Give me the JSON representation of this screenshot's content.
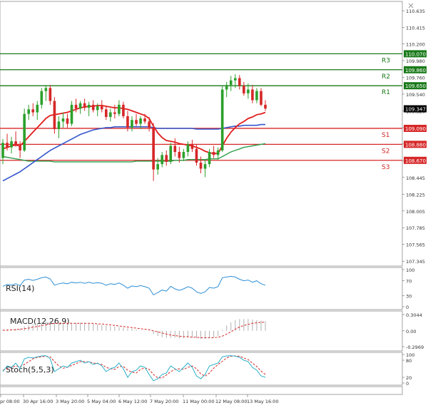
{
  "close_icon": "close-icon",
  "colors": {
    "bull": "#2ca02c",
    "bear": "#d62728",
    "ema_fast": "#e11d1d",
    "ema_slow": "#3355cc",
    "ema_long": "#2e9e4a",
    "resistance": "#1a7a1a",
    "support": "#d62728",
    "rsi": "#2e8fd6",
    "macd_hist": "#b0b0b0",
    "macd_signal": "#d62728",
    "stoch_k": "#2ab0c8",
    "stoch_d": "#d62728"
  },
  "price_panel": {
    "ylim": [
      107.3,
      110.72
    ],
    "tick_labels": [
      "110.635",
      "110.415",
      "110.200",
      "109.980",
      "109.760",
      "109.540",
      "109.320",
      "109.100",
      "108.885",
      "108.665",
      "108.445",
      "108.225",
      "108.005",
      "107.785",
      "107.565",
      "107.345"
    ],
    "tick_values": [
      110.635,
      110.415,
      110.2,
      109.98,
      109.76,
      109.54,
      109.32,
      109.1,
      108.885,
      108.665,
      108.445,
      108.225,
      108.005,
      107.785,
      107.565,
      107.345
    ],
    "current_price": "109.347",
    "current_value": 109.347
  },
  "levels": [
    {
      "name": "R3",
      "label": "110.070",
      "value": 110.07,
      "kind": "resistance"
    },
    {
      "name": "R2",
      "label": "109.860",
      "value": 109.86,
      "kind": "resistance"
    },
    {
      "name": "R1",
      "label": "109.650",
      "value": 109.65,
      "kind": "resistance"
    },
    {
      "name": "S1",
      "label": "109.090",
      "value": 109.09,
      "kind": "support"
    },
    {
      "name": "S2",
      "label": "108.880",
      "value": 108.88,
      "kind": "support"
    },
    {
      "name": "S3",
      "label": "108.670",
      "value": 108.67,
      "kind": "support"
    }
  ],
  "x_labels": [
    "pr 08:00",
    "30 Apr 16:00",
    "3 May 20:00",
    "5 May 04:00",
    "6 May 12:00",
    "7 May 20:00",
    "11 May 00:00",
    "12 May 08:00",
    "13 May 16:00"
  ],
  "rsi_panel": {
    "label": "RSI(14)",
    "ticks": [
      "100",
      "70",
      "30",
      "0"
    ],
    "tick_values": [
      100,
      70,
      30,
      0
    ]
  },
  "macd_panel": {
    "label": "MACD(12,26,9)",
    "ticks": [
      "0.3044",
      "0.00",
      "-0.2969"
    ],
    "tick_values": [
      0.3044,
      0.0,
      -0.2969
    ]
  },
  "stoch_panel": {
    "label": "Stoch(5,5,3)",
    "ticks": [
      "100",
      "80",
      "20",
      "0"
    ],
    "tick_values": [
      100,
      80,
      20,
      0
    ]
  },
  "chart_data": {
    "type": "candlestick",
    "candles": [
      [
        108.7,
        108.95,
        108.62,
        108.9
      ],
      [
        108.9,
        109.02,
        108.8,
        108.84
      ],
      [
        108.84,
        108.98,
        108.76,
        108.92
      ],
      [
        108.92,
        109.05,
        108.85,
        108.86
      ],
      [
        108.86,
        108.92,
        108.7,
        108.8
      ],
      [
        108.8,
        109.35,
        108.78,
        109.28
      ],
      [
        109.28,
        109.4,
        109.2,
        109.34
      ],
      [
        109.34,
        109.42,
        109.25,
        109.3
      ],
      [
        109.3,
        109.45,
        109.2,
        109.4
      ],
      [
        109.4,
        109.62,
        109.35,
        109.58
      ],
      [
        109.58,
        109.66,
        109.45,
        109.62
      ],
      [
        109.62,
        109.66,
        109.4,
        109.45
      ],
      [
        109.45,
        109.5,
        109.02,
        109.08
      ],
      [
        109.08,
        109.25,
        108.96,
        109.18
      ],
      [
        109.18,
        109.3,
        109.1,
        109.22
      ],
      [
        109.22,
        109.28,
        109.1,
        109.15
      ],
      [
        109.15,
        109.45,
        109.12,
        109.4
      ],
      [
        109.4,
        109.48,
        109.3,
        109.35
      ],
      [
        109.35,
        109.45,
        109.28,
        109.42
      ],
      [
        109.42,
        109.48,
        109.32,
        109.36
      ],
      [
        109.36,
        109.44,
        109.25,
        109.4
      ],
      [
        109.4,
        109.46,
        109.3,
        109.33
      ],
      [
        109.33,
        109.42,
        109.25,
        109.38
      ],
      [
        109.38,
        109.46,
        109.3,
        109.34
      ],
      [
        109.34,
        109.38,
        109.2,
        109.24
      ],
      [
        109.24,
        109.35,
        109.18,
        109.3
      ],
      [
        109.3,
        109.4,
        109.22,
        109.28
      ],
      [
        109.28,
        109.46,
        109.25,
        109.4
      ],
      [
        109.4,
        109.44,
        109.22,
        109.25
      ],
      [
        109.25,
        109.32,
        109.05,
        109.1
      ],
      [
        109.1,
        109.25,
        109.05,
        109.2
      ],
      [
        109.2,
        109.28,
        109.12,
        109.15
      ],
      [
        109.15,
        109.25,
        109.08,
        109.22
      ],
      [
        109.22,
        109.28,
        109.15,
        109.18
      ],
      [
        109.18,
        109.24,
        109.05,
        109.1
      ],
      [
        109.1,
        109.16,
        108.4,
        108.55
      ],
      [
        108.55,
        108.7,
        108.48,
        108.62
      ],
      [
        108.62,
        108.78,
        108.58,
        108.74
      ],
      [
        108.74,
        108.8,
        108.6,
        108.65
      ],
      [
        108.65,
        108.9,
        108.62,
        108.86
      ],
      [
        108.86,
        108.96,
        108.72,
        108.78
      ],
      [
        108.78,
        108.85,
        108.64,
        108.7
      ],
      [
        108.7,
        108.82,
        108.66,
        108.78
      ],
      [
        108.78,
        108.92,
        108.72,
        108.88
      ],
      [
        108.88,
        108.94,
        108.78,
        108.82
      ],
      [
        108.82,
        108.88,
        108.6,
        108.64
      ],
      [
        108.64,
        108.72,
        108.5,
        108.56
      ],
      [
        108.56,
        108.68,
        108.45,
        108.62
      ],
      [
        108.62,
        108.82,
        108.58,
        108.78
      ],
      [
        108.78,
        108.86,
        108.7,
        108.74
      ],
      [
        108.74,
        108.84,
        108.68,
        108.8
      ],
      [
        108.8,
        109.65,
        108.78,
        109.6
      ],
      [
        109.6,
        109.7,
        109.5,
        109.66
      ],
      [
        109.66,
        109.78,
        109.58,
        109.72
      ],
      [
        109.72,
        109.8,
        109.62,
        109.75
      ],
      [
        109.75,
        109.79,
        109.6,
        109.65
      ],
      [
        109.65,
        109.7,
        109.52,
        109.55
      ],
      [
        109.55,
        109.68,
        109.48,
        109.6
      ],
      [
        109.6,
        109.66,
        109.42,
        109.46
      ],
      [
        109.46,
        109.62,
        109.42,
        109.58
      ],
      [
        109.58,
        109.62,
        109.38,
        109.4
      ],
      [
        109.4,
        109.46,
        109.32,
        109.35
      ]
    ],
    "ema_fast": [
      108.82,
      108.84,
      108.86,
      108.87,
      108.86,
      108.92,
      108.98,
      109.04,
      109.1,
      109.16,
      109.22,
      109.26,
      109.27,
      109.28,
      109.29,
      109.3,
      109.32,
      109.34,
      109.36,
      109.37,
      109.38,
      109.38,
      109.39,
      109.39,
      109.38,
      109.37,
      109.36,
      109.36,
      109.35,
      109.34,
      109.32,
      109.3,
      109.28,
      109.26,
      109.22,
      109.12,
      109.03,
      108.97,
      108.93,
      108.92,
      108.91,
      108.89,
      108.88,
      108.87,
      108.86,
      108.84,
      108.82,
      108.79,
      108.77,
      108.76,
      108.76,
      108.86,
      108.96,
      109.04,
      109.1,
      109.15,
      109.18,
      109.22,
      109.24,
      109.27,
      109.28,
      109.3
    ],
    "ema_slow": [
      108.4,
      108.43,
      108.46,
      108.49,
      108.52,
      108.56,
      108.6,
      108.64,
      108.68,
      108.72,
      108.76,
      108.8,
      108.83,
      108.86,
      108.89,
      108.92,
      108.95,
      108.98,
      109.01,
      109.03,
      109.05,
      109.07,
      109.08,
      109.09,
      109.1,
      109.1,
      109.11,
      109.11,
      109.11,
      109.11,
      109.11,
      109.11,
      109.11,
      109.11,
      109.11,
      109.1,
      109.09,
      109.09,
      109.09,
      109.09,
      109.09,
      109.09,
      109.09,
      109.09,
      109.09,
      109.08,
      109.08,
      109.08,
      109.08,
      109.08,
      109.08,
      109.09,
      109.1,
      109.11,
      109.12,
      109.12,
      109.13,
      109.13,
      109.13,
      109.13,
      109.14,
      109.14
    ],
    "ema_long": [
      108.72,
      108.71,
      108.7,
      108.69,
      108.68,
      108.67,
      108.66,
      108.66,
      108.66,
      108.66,
      108.66,
      108.66,
      108.65,
      108.65,
      108.65,
      108.65,
      108.65,
      108.65,
      108.65,
      108.65,
      108.65,
      108.65,
      108.65,
      108.65,
      108.65,
      108.65,
      108.65,
      108.65,
      108.65,
      108.65,
      108.65,
      108.66,
      108.66,
      108.66,
      108.66,
      108.66,
      108.66,
      108.66,
      108.66,
      108.66,
      108.67,
      108.67,
      108.67,
      108.68,
      108.68,
      108.68,
      108.68,
      108.68,
      108.69,
      108.69,
      108.69,
      108.72,
      108.75,
      108.78,
      108.8,
      108.82,
      108.84,
      108.85,
      108.86,
      108.87,
      108.88,
      108.89
    ],
    "rsi": [
      55,
      60,
      58,
      62,
      57,
      72,
      74,
      71,
      74,
      78,
      80,
      75,
      58,
      62,
      64,
      62,
      66,
      64,
      66,
      63,
      66,
      63,
      65,
      63,
      58,
      62,
      60,
      64,
      58,
      50,
      56,
      54,
      57,
      54,
      50,
      32,
      38,
      45,
      42,
      55,
      48,
      44,
      48,
      54,
      50,
      40,
      36,
      40,
      52,
      50,
      54,
      78,
      80,
      82,
      80,
      74,
      70,
      72,
      66,
      70,
      62,
      58
    ],
    "macd_hist": [
      0.02,
      0.03,
      0.03,
      0.04,
      0.04,
      0.08,
      0.1,
      0.12,
      0.14,
      0.16,
      0.17,
      0.18,
      0.16,
      0.15,
      0.14,
      0.14,
      0.15,
      0.15,
      0.15,
      0.15,
      0.14,
      0.13,
      0.12,
      0.11,
      0.1,
      0.09,
      0.08,
      0.07,
      0.06,
      0.05,
      0.04,
      0.02,
      0.01,
      0.0,
      -0.01,
      -0.06,
      -0.1,
      -0.12,
      -0.13,
      -0.13,
      -0.13,
      -0.14,
      -0.14,
      -0.13,
      -0.13,
      -0.14,
      -0.15,
      -0.15,
      -0.13,
      -0.12,
      -0.1,
      0.02,
      0.1,
      0.16,
      0.2,
      0.22,
      0.22,
      0.22,
      0.21,
      0.2,
      0.19,
      0.18
    ],
    "macd_signal": [
      0.01,
      0.01,
      0.02,
      0.02,
      0.03,
      0.04,
      0.05,
      0.07,
      0.08,
      0.1,
      0.11,
      0.13,
      0.14,
      0.14,
      0.14,
      0.14,
      0.14,
      0.14,
      0.14,
      0.14,
      0.14,
      0.14,
      0.13,
      0.13,
      0.12,
      0.11,
      0.1,
      0.09,
      0.08,
      0.07,
      0.06,
      0.05,
      0.04,
      0.03,
      0.02,
      0.0,
      -0.02,
      -0.04,
      -0.06,
      -0.08,
      -0.09,
      -0.1,
      -0.11,
      -0.11,
      -0.12,
      -0.12,
      -0.13,
      -0.13,
      -0.13,
      -0.13,
      -0.12,
      -0.1,
      -0.06,
      -0.02,
      0.03,
      0.07,
      0.1,
      0.12,
      0.14,
      0.15,
      0.16,
      0.16
    ],
    "stoch_k": [
      40,
      60,
      55,
      70,
      50,
      85,
      90,
      88,
      92,
      95,
      96,
      85,
      40,
      50,
      60,
      55,
      70,
      75,
      80,
      70,
      75,
      65,
      70,
      60,
      40,
      50,
      55,
      70,
      50,
      20,
      40,
      45,
      60,
      55,
      30,
      8,
      15,
      30,
      35,
      60,
      50,
      40,
      55,
      70,
      55,
      25,
      15,
      30,
      60,
      65,
      70,
      92,
      95,
      96,
      94,
      90,
      80,
      75,
      55,
      45,
      25,
      20
    ],
    "stoch_d": [
      45,
      50,
      55,
      60,
      58,
      65,
      75,
      85,
      90,
      92,
      94,
      92,
      75,
      60,
      52,
      55,
      62,
      68,
      75,
      75,
      74,
      70,
      68,
      65,
      55,
      50,
      48,
      58,
      58,
      45,
      38,
      35,
      48,
      53,
      48,
      30,
      18,
      18,
      28,
      40,
      48,
      50,
      48,
      55,
      60,
      50,
      32,
      24,
      35,
      52,
      65,
      76,
      88,
      94,
      95,
      94,
      88,
      82,
      70,
      58,
      42,
      30
    ]
  }
}
